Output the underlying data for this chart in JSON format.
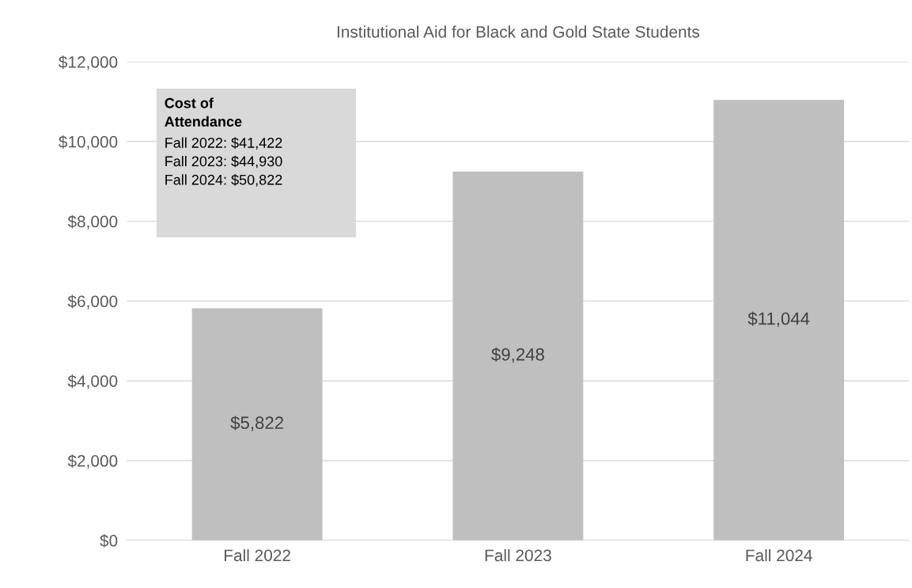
{
  "chart_data": {
    "type": "bar",
    "title": "Institutional Aid for Black and Gold State Students",
    "categories": [
      "Fall 2022",
      "Fall 2023",
      "Fall 2024"
    ],
    "values": [
      5822,
      9248,
      11044
    ],
    "color": "#bfbfbf",
    "value_labels": [
      "$5,822",
      "$9,248",
      "$11,044"
    ],
    "ylim": [
      0,
      12000
    ],
    "yticks": [
      {
        "value": 0,
        "label": "$0"
      },
      {
        "value": 2000,
        "label": "$2,000"
      },
      {
        "value": 4000,
        "label": "$4,000"
      },
      {
        "value": 6000,
        "label": "$6,000"
      },
      {
        "value": 8000,
        "label": "$8,000"
      },
      {
        "value": 10000,
        "label": "$10,000"
      },
      {
        "value": 12000,
        "label": "$12,000"
      }
    ],
    "grid": "y",
    "annotations": [
      "Cost of Attendance",
      "Fall 2022: $41,422",
      "Fall 2023: $44,930",
      "Fall 2024: $50,822"
    ]
  }
}
